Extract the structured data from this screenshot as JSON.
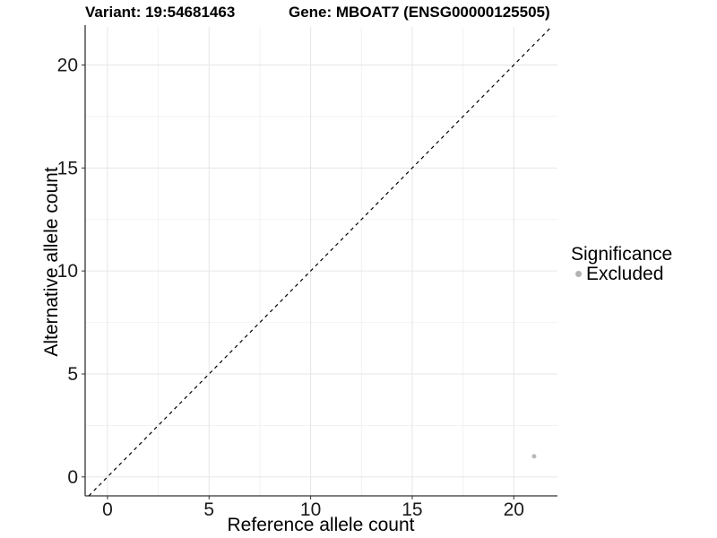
{
  "header": {
    "variant_title": "Variant: 19:54681463",
    "gene_title": "Gene: MBOAT7 (ENSG00000125505)"
  },
  "chart_data": {
    "type": "scatter",
    "xlabel": "Reference allele count",
    "ylabel": "Alternative allele count",
    "xlim": [
      -1.1,
      22.15
    ],
    "ylim": [
      -0.92,
      21.85
    ],
    "x_major_ticks": [
      0,
      5,
      10,
      15,
      20
    ],
    "y_major_ticks": [
      0,
      5,
      10,
      15,
      20
    ],
    "minor_step": 2.5,
    "grid": true,
    "points": [
      {
        "x": 21,
        "y": 1,
        "significance": "Excluded"
      }
    ],
    "identity_line": {
      "style": "dashed",
      "slope": 1,
      "intercept": 0
    },
    "legend": {
      "title": "Significance",
      "position": "right",
      "entries": [
        {
          "label": "Excluded",
          "color": "#b3b3b3"
        }
      ]
    },
    "colors": {
      "point_excluded": "#b9b9b9",
      "grid_major": "#e6e6e6",
      "grid_minor": "#f2f2f2",
      "axis_line": "#333333",
      "tick_mark": "#333333",
      "dashed_line": "#000000"
    }
  }
}
